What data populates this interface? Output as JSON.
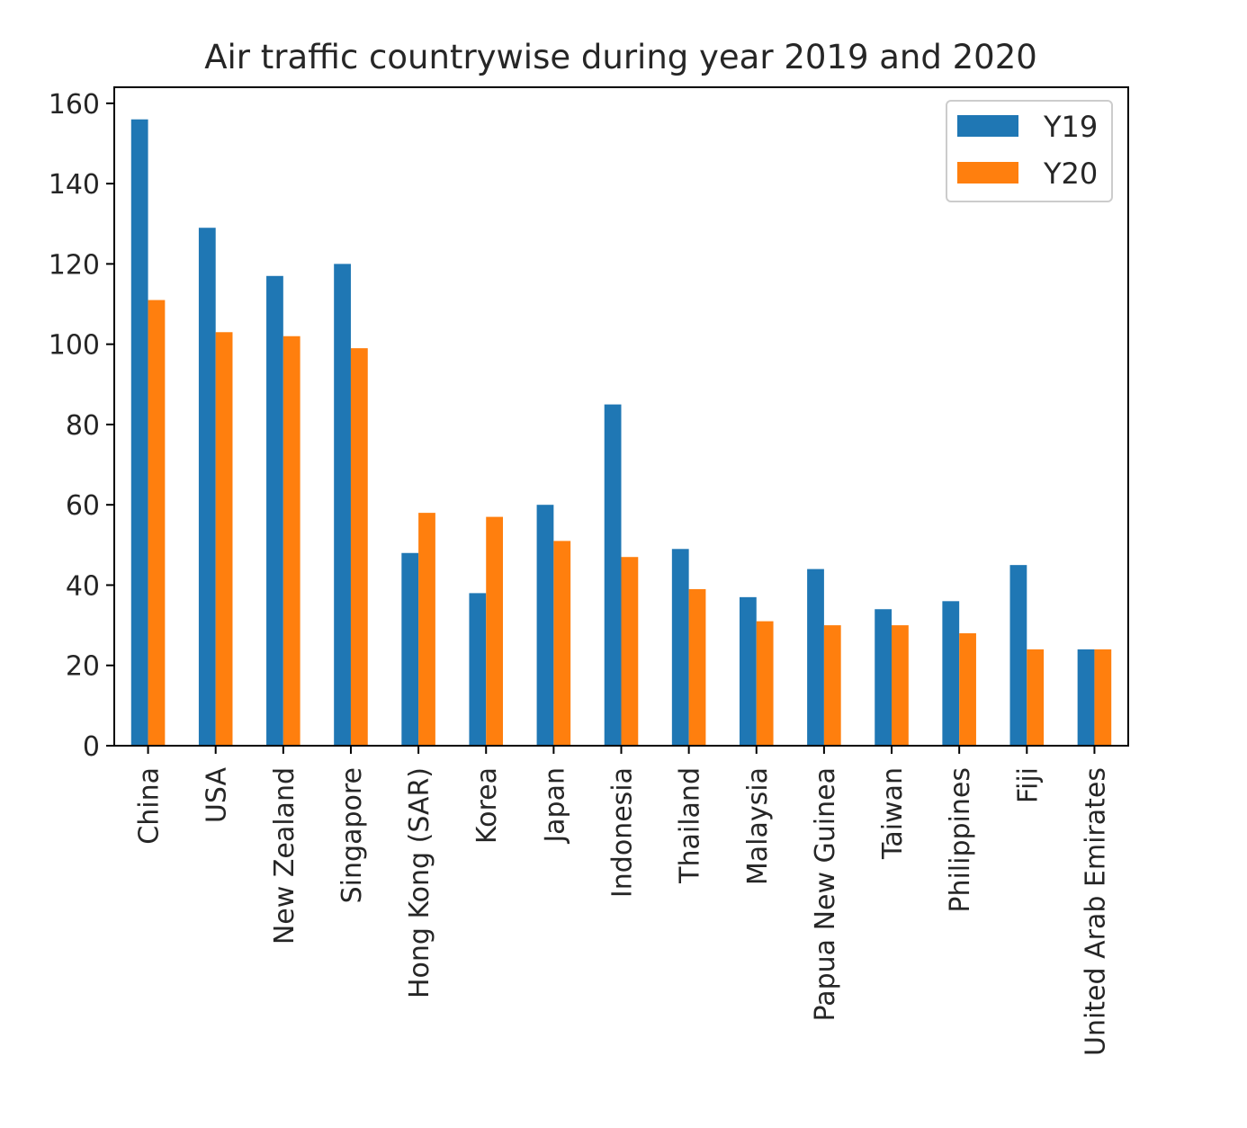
{
  "chart_data": {
    "type": "bar",
    "title": "Air traffic countrywise during year 2019 and 2020",
    "xlabel": "",
    "ylabel": "",
    "ylim": [
      0,
      164
    ],
    "yticks": [
      0,
      20,
      40,
      60,
      80,
      100,
      120,
      140,
      160
    ],
    "grid": false,
    "legend_position": "top-right",
    "categories": [
      "China",
      "USA",
      "New Zealand",
      "Singapore",
      "Hong Kong (SAR)",
      "Korea",
      "Japan",
      "Indonesia",
      "Thailand",
      "Malaysia",
      "Papua New Guinea",
      "Taiwan",
      "Philippines",
      "Fiji",
      "United Arab Emirates"
    ],
    "series": [
      {
        "name": "Y19",
        "color": "#1f77b4",
        "values": [
          156,
          129,
          117,
          120,
          48,
          38,
          60,
          85,
          49,
          37,
          44,
          34,
          36,
          45,
          24
        ]
      },
      {
        "name": "Y20",
        "color": "#ff7f0e",
        "values": [
          111,
          103,
          102,
          99,
          58,
          57,
          51,
          47,
          39,
          31,
          30,
          30,
          28,
          24,
          24
        ]
      }
    ]
  }
}
